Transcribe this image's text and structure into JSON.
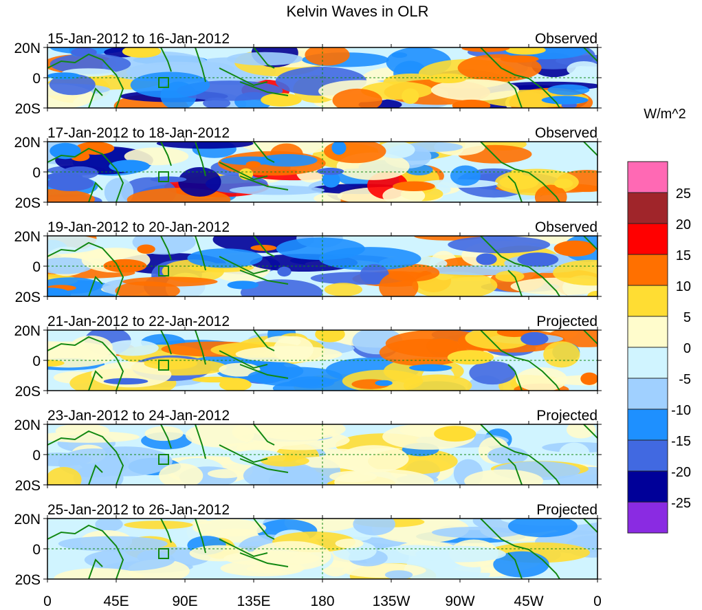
{
  "chart_data": {
    "type": "heatmap",
    "title": "Kelvin Waves in OLR",
    "panels": [
      {
        "period": "15-Jan-2012 to 16-Jan-2012",
        "label": "Observed"
      },
      {
        "period": "17-Jan-2012 to 18-Jan-2012",
        "label": "Observed"
      },
      {
        "period": "19-Jan-2012 to 20-Jan-2012",
        "label": "Observed"
      },
      {
        "period": "21-Jan-2012 to 22-Jan-2012",
        "label": "Projected"
      },
      {
        "period": "23-Jan-2012 to 24-Jan-2012",
        "label": "Projected"
      },
      {
        "period": "25-Jan-2012 to 26-Jan-2012",
        "label": "Projected"
      }
    ],
    "yticks": [
      "20N",
      "0",
      "20S"
    ],
    "xticks": [
      "0",
      "45E",
      "90E",
      "135E",
      "180",
      "135W",
      "90W",
      "45W",
      "0"
    ],
    "ylim": [
      -20,
      20
    ],
    "xlim": [
      0,
      360
    ],
    "colorbar": {
      "unit": "W/m^2",
      "labels": [
        "25",
        "20",
        "15",
        "10",
        "5",
        "0",
        "-5",
        "-10",
        "-15",
        "-20",
        "-25"
      ],
      "colors": [
        "#ff69b4",
        "#a0252a",
        "#ff0000",
        "#ff7000",
        "#ffdd33",
        "#fffccc",
        "#d0f4ff",
        "#a0d0ff",
        "#1e90ff",
        "#4169e1",
        "#000099",
        "#8a2be2"
      ]
    }
  }
}
